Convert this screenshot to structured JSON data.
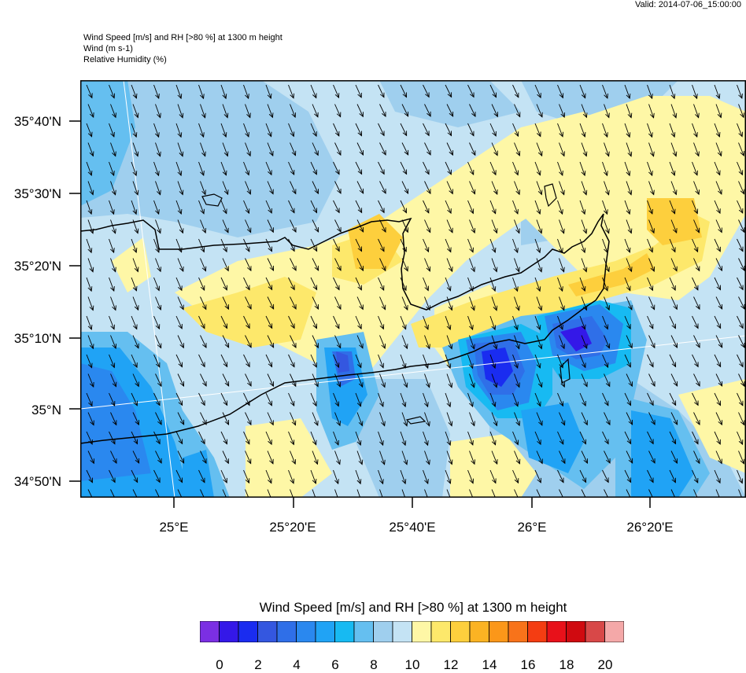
{
  "valid_label": "Valid: 2014-07-06_15:00:00",
  "header": {
    "line1": "Wind Speed [m/s] and RH [>80 %] at 1300 m height",
    "line2": "Wind   (m s-1)",
    "line3": "Relative Humidity   (%)"
  },
  "map": {
    "lat_ticks": [
      "35°40'N",
      "35°30'N",
      "35°20'N",
      "35°10'N",
      "35°N",
      "34°50'N"
    ],
    "lon_ticks": [
      "25°E",
      "25°20'E",
      "25°40'E",
      "26°E",
      "26°20'E"
    ],
    "wind_direction": "north-west to south-east"
  },
  "colorbar": {
    "title": "Wind Speed [m/s] and RH [>80 %] at 1300 m height",
    "colors": [
      "#7b2fe3",
      "#3418e8",
      "#1a2cf0",
      "#3457e0",
      "#2f6fe8",
      "#2a88ef",
      "#20a3f5",
      "#17baf2",
      "#65bff0",
      "#9fcfee",
      "#c4e3f4",
      "#fef7a6",
      "#fde86b",
      "#fdcf3d",
      "#fbb323",
      "#fb9719",
      "#f8731a",
      "#f43d12",
      "#e8111a",
      "#d00a10",
      "#d84848",
      "#f4a8a8"
    ],
    "labels": [
      "0",
      "2",
      "4",
      "6",
      "8",
      "10",
      "12",
      "14",
      "16",
      "18",
      "20"
    ]
  }
}
